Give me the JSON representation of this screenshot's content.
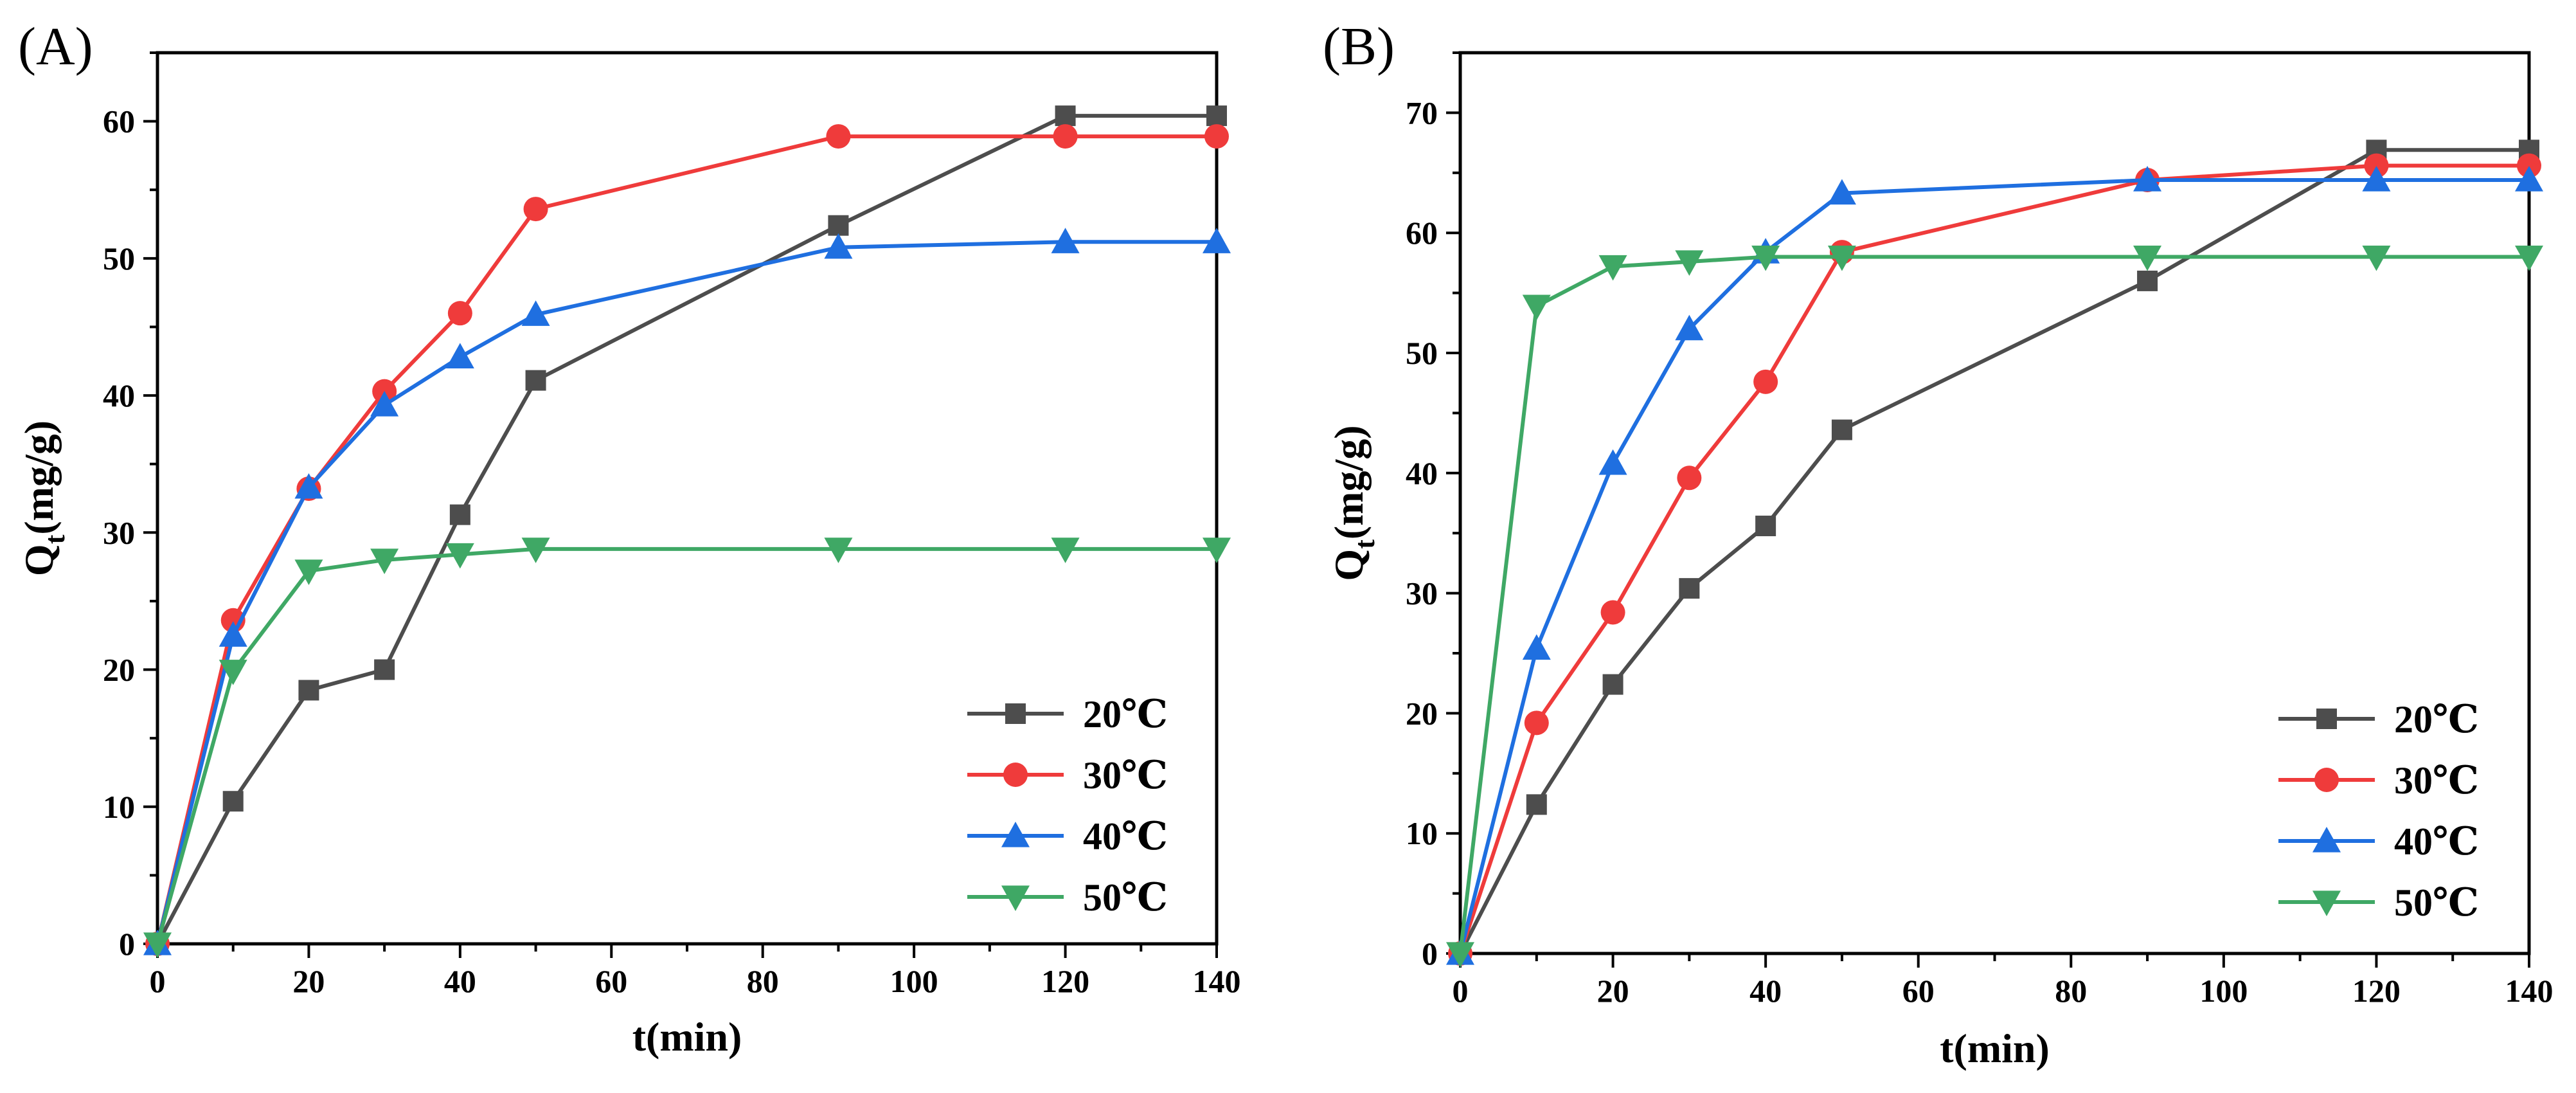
{
  "chart_data": [
    {
      "type": "line",
      "panel_label": "(A)",
      "xlabel": "t(min)",
      "ylabel_main": "Q",
      "ylabel_sub": "t",
      "ylabel_tail": "(mg/g)",
      "xlim": [
        0,
        140
      ],
      "ylim": [
        0,
        65
      ],
      "xticks": [
        0,
        20,
        40,
        60,
        80,
        100,
        120,
        140
      ],
      "yticks": [
        0,
        10,
        20,
        30,
        40,
        50,
        60
      ],
      "grid": false,
      "legend_position": "bottom-right",
      "x": [
        0,
        10,
        20,
        30,
        40,
        50,
        90,
        120,
        140
      ],
      "series": [
        {
          "name": "20℃",
          "marker": "square",
          "color": "#4d4d4d",
          "values": [
            0,
            10.4,
            18.5,
            20.0,
            31.3,
            41.1,
            52.4,
            60.4,
            60.4
          ]
        },
        {
          "name": "30℃",
          "marker": "circle",
          "color": "#ef3b3b",
          "values": [
            0,
            23.6,
            33.2,
            40.3,
            46.0,
            53.6,
            58.9,
            58.9,
            58.9
          ]
        },
        {
          "name": "40℃",
          "marker": "triangle-up",
          "color": "#1f6fe0",
          "values": [
            0,
            22.5,
            33.3,
            39.3,
            42.8,
            45.9,
            50.8,
            51.2,
            51.2
          ]
        },
        {
          "name": "50℃",
          "marker": "triangle-down",
          "color": "#3fa865",
          "values": [
            0,
            19.9,
            27.2,
            28.0,
            28.4,
            28.8,
            28.8,
            28.8,
            28.8
          ]
        }
      ]
    },
    {
      "type": "line",
      "panel_label": "(B)",
      "xlabel": "t(min)",
      "ylabel_main": "Q",
      "ylabel_sub": "t",
      "ylabel_tail": "(mg/g)",
      "xlim": [
        0,
        140
      ],
      "ylim": [
        0,
        75
      ],
      "xticks": [
        0,
        20,
        40,
        60,
        80,
        100,
        120,
        140
      ],
      "yticks": [
        0,
        10,
        20,
        30,
        40,
        50,
        60,
        70
      ],
      "grid": false,
      "legend_position": "bottom-right",
      "x": [
        0,
        10,
        20,
        30,
        40,
        50,
        90,
        120,
        140
      ],
      "series": [
        {
          "name": "20℃",
          "marker": "square",
          "color": "#4d4d4d",
          "values": [
            0,
            12.4,
            22.4,
            30.4,
            35.6,
            43.6,
            56.0,
            66.9,
            66.9
          ]
        },
        {
          "name": "30℃",
          "marker": "circle",
          "color": "#ef3b3b",
          "values": [
            0,
            19.2,
            28.4,
            39.6,
            47.6,
            58.4,
            64.4,
            65.6,
            65.6
          ]
        },
        {
          "name": "40℃",
          "marker": "triangle-up",
          "color": "#1f6fe0",
          "values": [
            0,
            25.4,
            40.8,
            52.0,
            58.4,
            63.3,
            64.4,
            64.4,
            64.4
          ]
        },
        {
          "name": "50℃",
          "marker": "triangle-down",
          "color": "#3fa865",
          "values": [
            0,
            53.9,
            57.2,
            57.6,
            58.0,
            58.0,
            58.0,
            58.0,
            58.0
          ]
        }
      ]
    }
  ]
}
